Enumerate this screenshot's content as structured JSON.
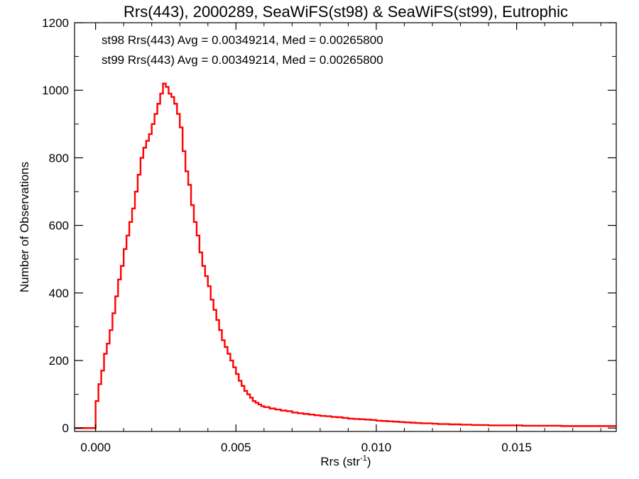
{
  "chart_data": {
    "type": "histogram",
    "title": "Rrs(443), 2000289, SeaWiFS(st98) & SeaWiFS(st99), Eutrophic",
    "xlabel_main": "Rrs (str",
    "xlabel_sup": "-1",
    "xlabel_close": ")",
    "ylabel": "Number of Observations",
    "xlim": [
      -0.00075,
      0.01855
    ],
    "ylim": [
      -10,
      1200
    ],
    "xticks": [
      0.0,
      0.005,
      0.01,
      0.015
    ],
    "xtick_labels": [
      "0.000",
      "0.005",
      "0.010",
      "0.015"
    ],
    "yticks": [
      0,
      200,
      400,
      600,
      800,
      1000,
      1200
    ],
    "ytick_labels": [
      "0",
      "200",
      "400",
      "600",
      "800",
      "1000",
      "1200"
    ],
    "annotations": [
      {
        "text": "st98 Rrs(443) Avg = 0.00349214, Med = 0.00265800",
        "color": "#000000"
      },
      {
        "text": "st99 Rrs(443) Avg = 0.00349214, Med = 0.00265800",
        "color": "#ff0000"
      }
    ],
    "series": [
      {
        "color": "#ff0000",
        "step": true,
        "x": [
          -0.00075,
          0.0,
          0.0001,
          0.0002,
          0.0003,
          0.0004,
          0.0005,
          0.0006,
          0.0007,
          0.0008,
          0.0009,
          0.001,
          0.0011,
          0.0012,
          0.0013,
          0.0014,
          0.0015,
          0.0016,
          0.0017,
          0.0018,
          0.0019,
          0.002,
          0.0021,
          0.0022,
          0.0023,
          0.0024,
          0.0025,
          0.0026,
          0.0027,
          0.0028,
          0.0029,
          0.003,
          0.0031,
          0.0032,
          0.0033,
          0.0034,
          0.0035,
          0.0036,
          0.0037,
          0.0038,
          0.0039,
          0.004,
          0.0041,
          0.0042,
          0.0043,
          0.0044,
          0.0045,
          0.0046,
          0.0047,
          0.0048,
          0.0049,
          0.005,
          0.0051,
          0.0052,
          0.0053,
          0.0054,
          0.0055,
          0.0056,
          0.0057,
          0.0058,
          0.0059,
          0.006,
          0.0062,
          0.0064,
          0.0066,
          0.0068,
          0.007,
          0.0072,
          0.0074,
          0.0076,
          0.0078,
          0.008,
          0.0082,
          0.0084,
          0.0086,
          0.0088,
          0.009,
          0.0092,
          0.0094,
          0.0096,
          0.0098,
          0.01,
          0.0102,
          0.0104,
          0.0106,
          0.0108,
          0.011,
          0.0112,
          0.0114,
          0.0116,
          0.0118,
          0.012,
          0.0122,
          0.0124,
          0.0126,
          0.0128,
          0.013,
          0.0132,
          0.0134,
          0.0136,
          0.0138,
          0.014,
          0.0142,
          0.0144,
          0.0146,
          0.0148,
          0.015,
          0.0152,
          0.0154,
          0.0156,
          0.0158,
          0.016,
          0.0162,
          0.0164,
          0.0166,
          0.0168,
          0.017,
          0.0172,
          0.0174,
          0.0176,
          0.0178,
          0.018,
          0.0182,
          0.0184
        ],
        "y": [
          0,
          80,
          130,
          170,
          220,
          250,
          290,
          340,
          390,
          440,
          480,
          530,
          570,
          610,
          650,
          700,
          750,
          800,
          830,
          850,
          870,
          900,
          930,
          960,
          990,
          1020,
          1010,
          990,
          980,
          960,
          930,
          890,
          820,
          760,
          720,
          660,
          610,
          570,
          520,
          480,
          450,
          420,
          380,
          350,
          320,
          290,
          260,
          240,
          220,
          200,
          180,
          160,
          140,
          125,
          110,
          100,
          90,
          80,
          75,
          70,
          65,
          62,
          58,
          55,
          52,
          50,
          46,
          44,
          42,
          40,
          38,
          36,
          35,
          33,
          32,
          30,
          28,
          27,
          26,
          25,
          24,
          22,
          21,
          20,
          19,
          18,
          17,
          16,
          15,
          14,
          14,
          13,
          12,
          12,
          11,
          11,
          10,
          10,
          9,
          9,
          9,
          8,
          8,
          8,
          8,
          8,
          8,
          7,
          7,
          7,
          7,
          7,
          7,
          7,
          6,
          6,
          6,
          6,
          6,
          6,
          6,
          6,
          6,
          6
        ]
      }
    ]
  }
}
